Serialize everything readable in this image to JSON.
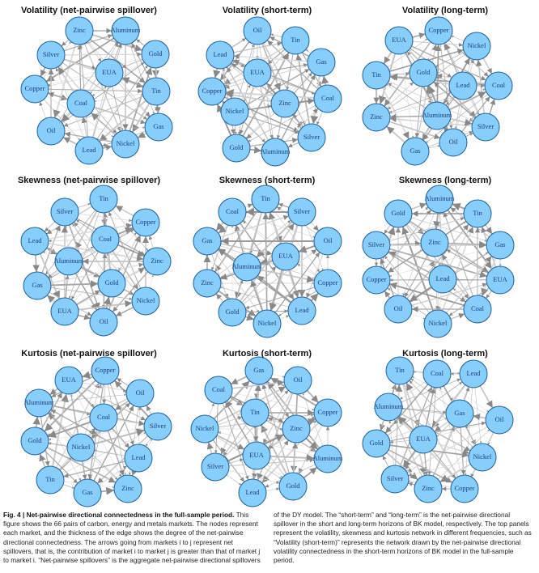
{
  "panels": [
    {
      "title": "Volatility (net-pairwise spillover)",
      "nodes": [
        "Zinc",
        "Aluminum",
        "Silver",
        "Gold",
        "EUA",
        "Copper",
        "Tin",
        "Coal",
        "Oil",
        "Gas",
        "Nickel",
        "Lead"
      ]
    },
    {
      "title": "Volatility (short-term)",
      "nodes": [
        "Oil",
        "Tin",
        "Lead",
        "Gas",
        "EUA",
        "Copper",
        "Coal",
        "Nickel",
        "Zinc",
        "Gold",
        "Silver",
        "Aluminum"
      ]
    },
    {
      "title": "Volatility (long-term)",
      "nodes": [
        "Copper",
        "EUA",
        "Nickel",
        "Tin",
        "Gold",
        "Lead",
        "Coal",
        "Zinc",
        "Aluminum",
        "Silver",
        "Oil",
        "Gas"
      ]
    },
    {
      "title": "Skewness (net-pairwise spillover)",
      "nodes": [
        "Tin",
        "Silver",
        "Copper",
        "Lead",
        "Coal",
        "Aluminum",
        "Zinc",
        "Gas",
        "Gold",
        "Nickel",
        "EUA",
        "Oil"
      ]
    },
    {
      "title": "Skewness (short-term)",
      "nodes": [
        "Tin",
        "Coal",
        "Silver",
        "Gas",
        "Oil",
        "Aluminum",
        "EUA",
        "Zinc",
        "Copper",
        "Gold",
        "Lead",
        "Nickel"
      ]
    },
    {
      "title": "Skewness (long-term)",
      "nodes": [
        "Aluminum",
        "Gold",
        "Tin",
        "Silver",
        "Zinc",
        "Gas",
        "Copper",
        "Lead",
        "EUA",
        "Oil",
        "Coal",
        "Nickel"
      ]
    },
    {
      "title": "Kurtosis (net-pairwise spillover)",
      "nodes": [
        "Copper",
        "EUA",
        "Oil",
        "Aluminum",
        "Coal",
        "Silver",
        "Gold",
        "Nickel",
        "Lead",
        "Tin",
        "Zinc",
        "Gas"
      ]
    },
    {
      "title": "Kurtosis (short-term)",
      "nodes": [
        "Gas",
        "Oil",
        "Coal",
        "Tin",
        "Copper",
        "Nickel",
        "Zinc",
        "EUA",
        "Aluminum",
        "Silver",
        "Gold",
        "Lead"
      ]
    },
    {
      "title": "Kurtosis (long-term)",
      "nodes": [
        "Tin",
        "Coal",
        "Lead",
        "Aluminum",
        "Gas",
        "Oil",
        "EUA",
        "Gold",
        "Nickel",
        "Silver",
        "Zinc",
        "Copper"
      ]
    }
  ],
  "caption": {
    "label": "Fig. 4 | Net-pairwise directional connectedness in the full-sample period.",
    "text": "This figure shows the 66 pairs of carbon, energy and metals markets. The nodes represent each market, and the thickness of the edge shows the degree of the net-pairwise directional connectedness. The arrows going from markets i to j represent net spillovers, that is, the contribution of market i to market j is greater than that of market j to market i. “Net-pairwise spillovers” is the aggregate net-pairwise directional spillovers of the DY model. The “short-term” and “long-term” is the net-pairwise directional spillover in the short and long-term horizons of BK model, respectively. The top panels represent the volatility, skewness and kurtosis network in different frequencies, such as “Volatility (short-term)” represents the network drawn by the net-pairwise directional volatility connectedness in the short-term horizons of BK model in the full-sample period."
  }
}
